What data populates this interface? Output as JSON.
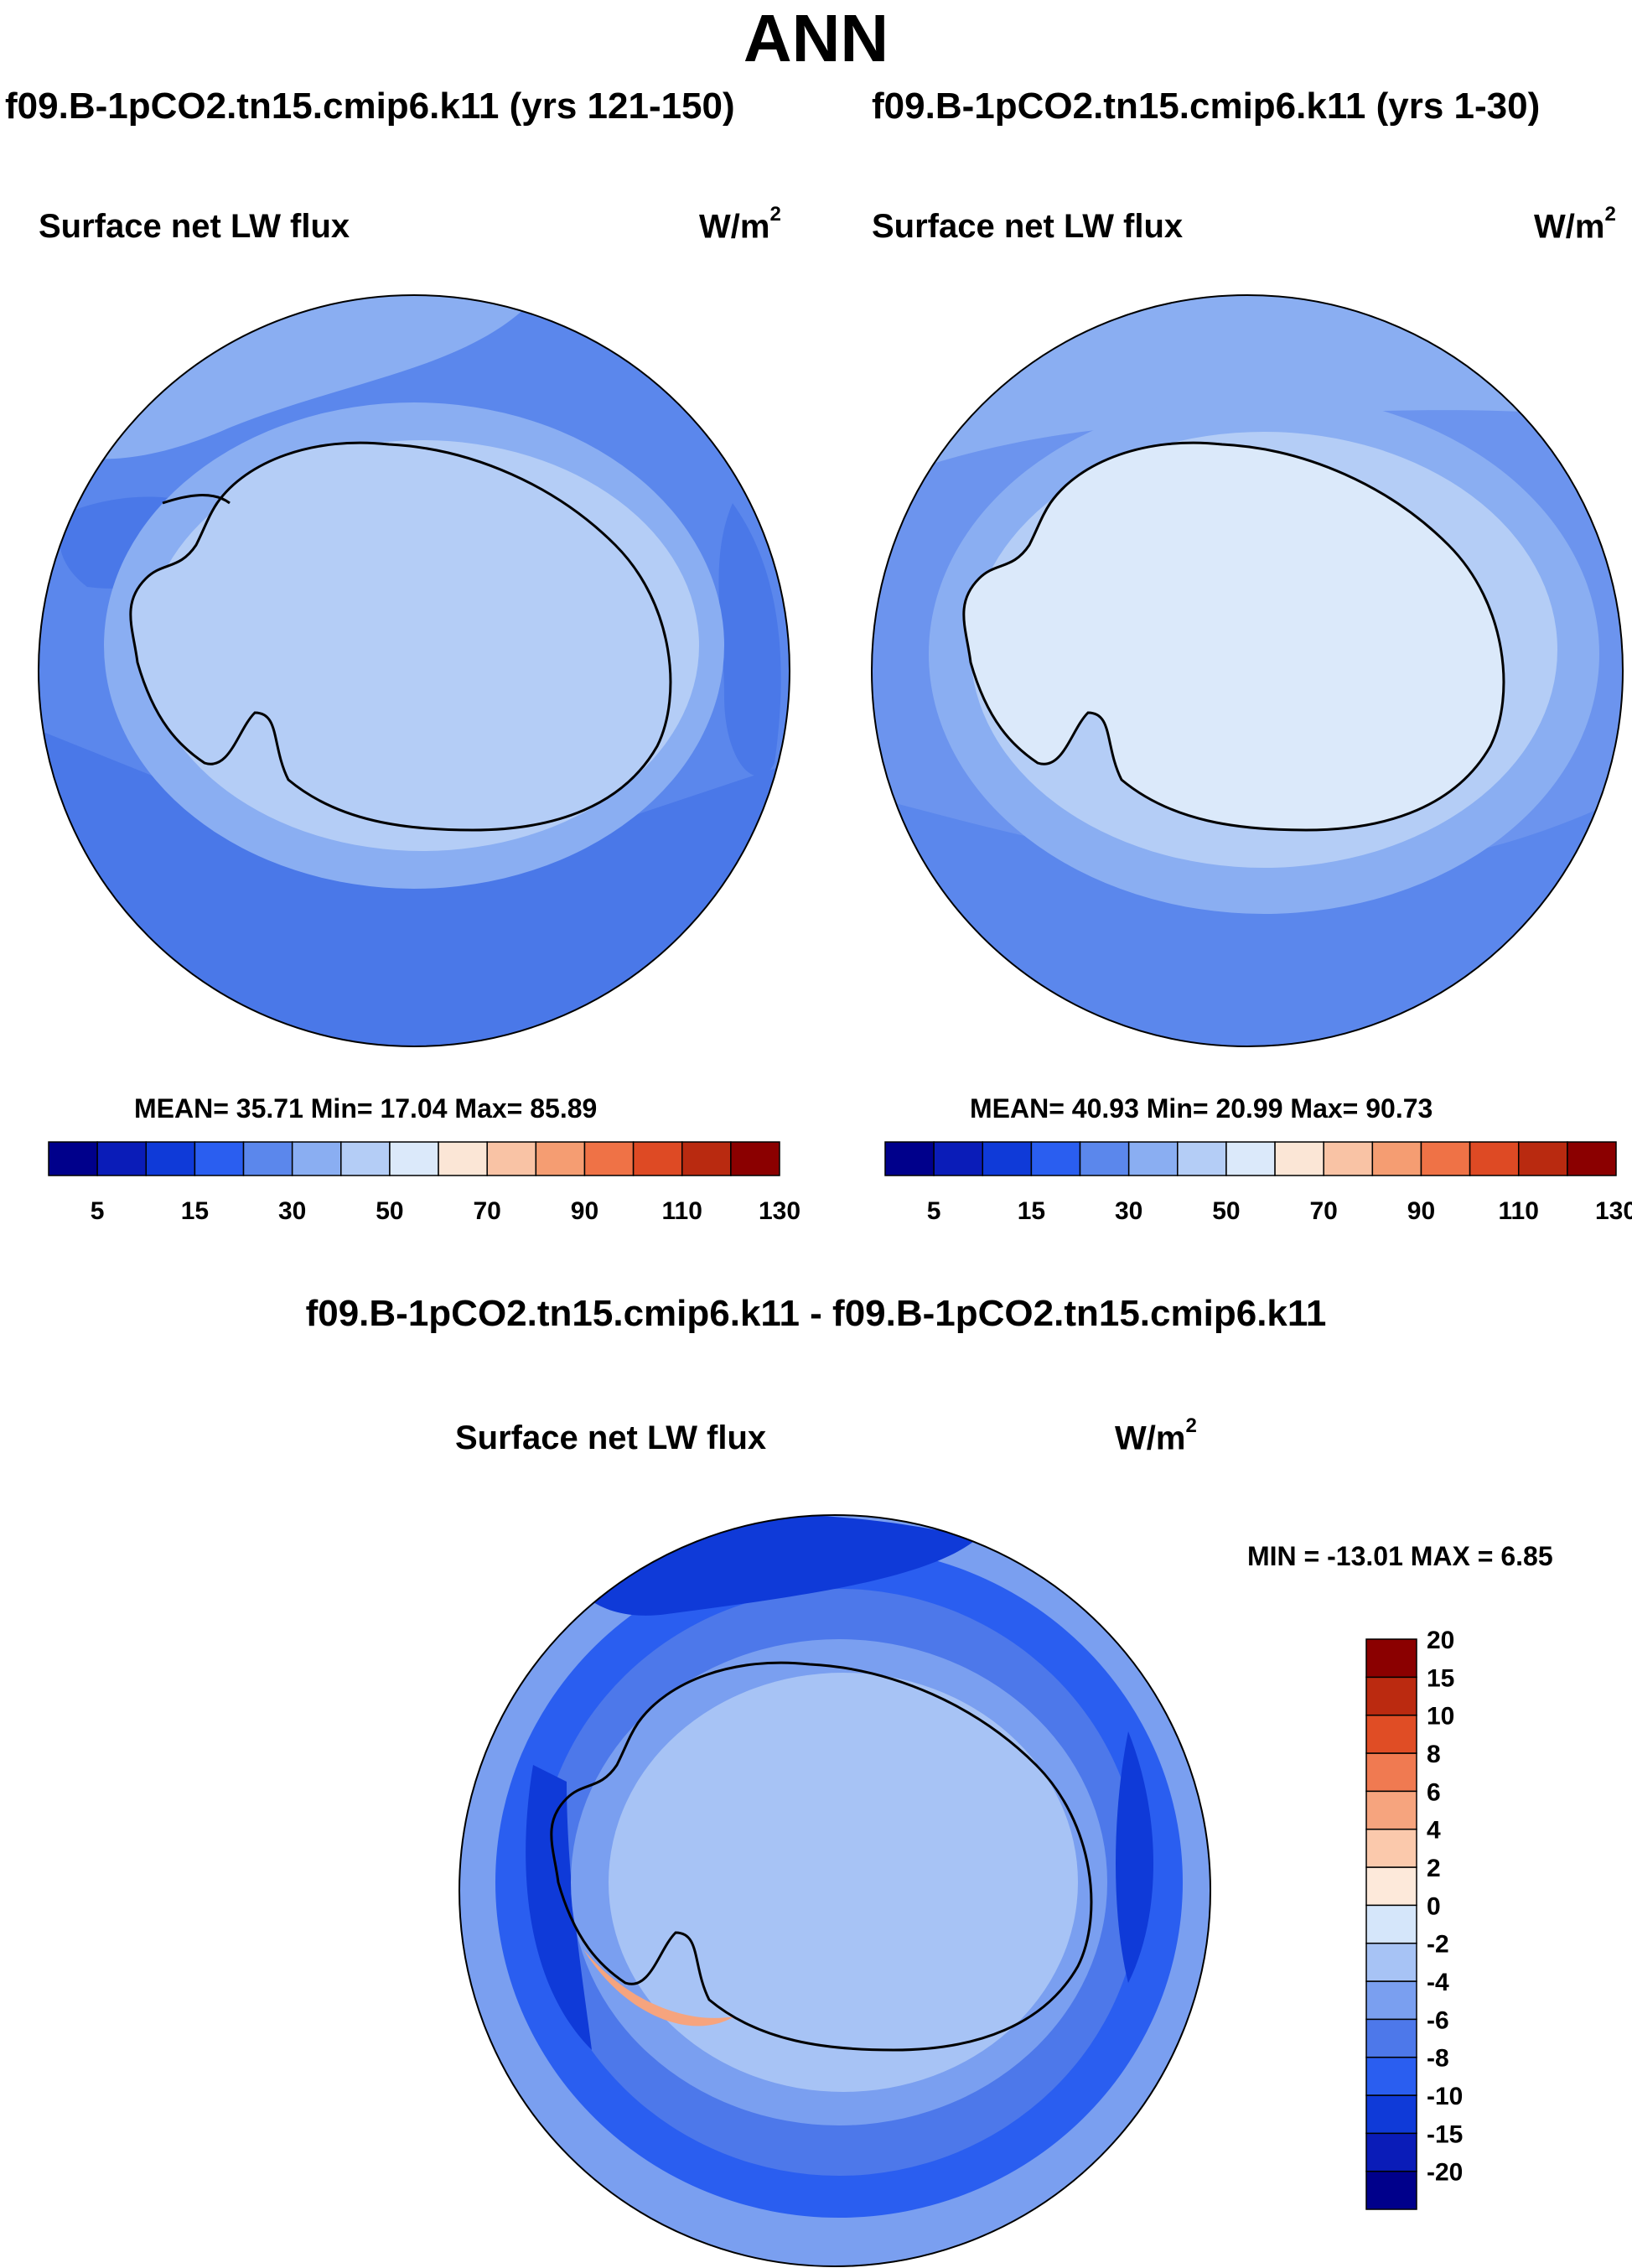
{
  "title": "ANN",
  "panels": [
    {
      "case": "f09.B-1pCO2.tn15.cmip6.k11 (yrs 121-150)",
      "variable": "Surface net LW flux",
      "units_base": "W/m",
      "units_exp": "2",
      "stats": "MEAN=  35.71  Min=  17.04  Max=  85.89",
      "mean": 35.71,
      "min": 17.04,
      "max": 85.89
    },
    {
      "case": "f09.B-1pCO2.tn15.cmip6.k11 (yrs 1-30)",
      "variable": "Surface net LW flux",
      "units_base": "W/m",
      "units_exp": "2",
      "stats": "MEAN=  40.93  Min=  20.99  Max=  90.73",
      "mean": 40.93,
      "min": 20.99,
      "max": 90.73
    }
  ],
  "diff": {
    "title": "f09.B-1pCO2.tn15.cmip6.k11 - f09.B-1pCO2.tn15.cmip6.k11",
    "variable": "Surface net LW flux",
    "units_base": "W/m",
    "units_exp": "2",
    "stats": "MIN = -13.01 MAX =   6.85",
    "min": -13.01,
    "max": 6.85
  },
  "colorbar_top": {
    "colors": [
      "#00008b",
      "#0a1cb8",
      "#0f3ad8",
      "#2a5ef0",
      "#5b87ec",
      "#8aaef2",
      "#b4cdf6",
      "#dbe9fa",
      "#fbe6d6",
      "#f9c3a5",
      "#f59d72",
      "#ef7246",
      "#de4a24",
      "#b92a10",
      "#8b0000"
    ],
    "labels": [
      "5",
      "15",
      "30",
      "50",
      "70",
      "90",
      "110",
      "130"
    ]
  },
  "colorbar_diff": {
    "colors": [
      "#00008b",
      "#0a1cb8",
      "#0f3ad8",
      "#2a5ef0",
      "#4d78ea",
      "#7a9ff0",
      "#a7c3f5",
      "#d5e6fa",
      "#fde9da",
      "#fbc9ac",
      "#f6a47e",
      "#f07a51",
      "#e04d25",
      "#bb2a10",
      "#8b0000"
    ],
    "labels": [
      "-20",
      "-15",
      "-10",
      "-8",
      "-6",
      "-4",
      "-2",
      "0",
      "2",
      "4",
      "6",
      "8",
      "10",
      "15",
      "20"
    ]
  },
  "icons": {
    "map": "antarctica-polar-map-icon"
  }
}
